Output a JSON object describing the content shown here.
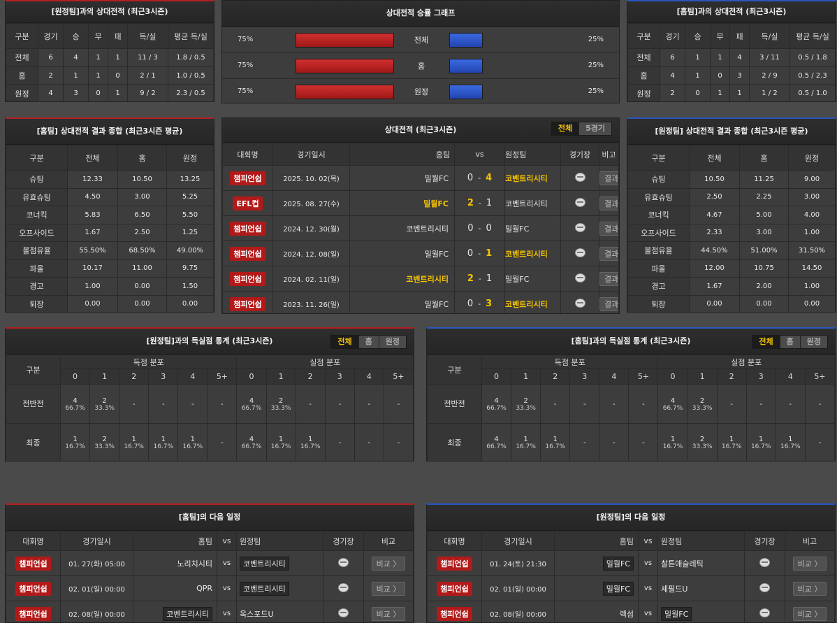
{
  "away_h2h": {
    "title": "[원정팀]과의 상대전적 (최근3시즌)",
    "headers": [
      "구분",
      "경기",
      "승",
      "무",
      "패",
      "득/실",
      "평균 득/실"
    ],
    "rows": [
      [
        "전체",
        "6",
        "4",
        "1",
        "1",
        "11 / 3",
        "1.8 / 0.5"
      ],
      [
        "홈",
        "2",
        "1",
        "1",
        "0",
        "2 / 1",
        "1.0 / 0.5"
      ],
      [
        "원정",
        "4",
        "3",
        "0",
        "1",
        "9 / 2",
        "2.3 / 0.5"
      ]
    ]
  },
  "graph": {
    "title": "상대전적 승률 그래프",
    "rows": [
      {
        "label": "전체",
        "left": "75%",
        "right": "25%",
        "left_value": 0.75,
        "right_value": 0.25
      },
      {
        "label": "홈",
        "left": "75%",
        "right": "25%",
        "left_value": 0.75,
        "right_value": 0.25
      },
      {
        "label": "원정",
        "left": "75%",
        "right": "25%",
        "left_value": 0.75,
        "right_value": 0.25
      }
    ]
  },
  "home_h2h": {
    "title": "[홈팀]과의 상대전적 (최근3시즌)",
    "headers": [
      "구분",
      "경기",
      "승",
      "무",
      "패",
      "득/실",
      "평균 득/실"
    ],
    "rows": [
      [
        "전체",
        "6",
        "1",
        "1",
        "4",
        "3 / 11",
        "0.5 / 1.8"
      ],
      [
        "홈",
        "4",
        "1",
        "0",
        "3",
        "2 / 9",
        "0.5 / 2.3"
      ],
      [
        "원정",
        "2",
        "0",
        "1",
        "1",
        "1 / 2",
        "0.5 / 1.0"
      ]
    ]
  },
  "home_summary": {
    "title": "[홈팀] 상대전적 결과 종합 (최근3시즌 평균)",
    "headers": [
      "구분",
      "전체",
      "홈",
      "원정"
    ],
    "rows": [
      [
        "슈팅",
        "12.33",
        "10.50",
        "13.25"
      ],
      [
        "유효슈팅",
        "4.50",
        "3.00",
        "5.25"
      ],
      [
        "코너킥",
        "5.83",
        "6.50",
        "5.50"
      ],
      [
        "오프사이드",
        "1.67",
        "2.50",
        "1.25"
      ],
      [
        "볼점유율",
        "55.50%",
        "68.50%",
        "49.00%"
      ],
      [
        "파울",
        "10.17",
        "11.00",
        "9.75"
      ],
      [
        "경고",
        "1.00",
        "0.00",
        "1.50"
      ],
      [
        "퇴장",
        "0.00",
        "0.00",
        "0.00"
      ]
    ]
  },
  "recent": {
    "title": "상대전적 (최근3시즌)",
    "tabs": [
      "전체",
      "5경기"
    ],
    "headers": {
      "league": "대회명",
      "date": "경기일시",
      "home": "홈팀",
      "vs": "vs",
      "away": "원정팀",
      "venue": "경기장",
      "note": "비고"
    },
    "result_label": "결과 〉",
    "matches": [
      {
        "league": "챔피언쉽",
        "date": "2025. 10. 02(목)",
        "home": "밀월FC",
        "hs": "0",
        "as": "4",
        "away": "코벤트리시티",
        "winner": "away"
      },
      {
        "league": "EFL컵",
        "date": "2025. 08. 27(수)",
        "home": "밀월FC",
        "hs": "2",
        "as": "1",
        "away": "코벤트리시티",
        "winner": "home"
      },
      {
        "league": "챔피언쉽",
        "date": "2024. 12. 30(월)",
        "home": "코벤트리시티",
        "hs": "0",
        "as": "0",
        "away": "밀월FC",
        "winner": "none"
      },
      {
        "league": "챔피언쉽",
        "date": "2024. 12. 08(일)",
        "home": "밀월FC",
        "hs": "0",
        "as": "1",
        "away": "코벤트리시티",
        "winner": "away"
      },
      {
        "league": "챔피언쉽",
        "date": "2024. 02. 11(일)",
        "home": "코벤트리시티",
        "hs": "2",
        "as": "1",
        "away": "밀월FC",
        "winner": "home"
      },
      {
        "league": "챔피언쉽",
        "date": "2023. 11. 26(일)",
        "home": "밀월FC",
        "hs": "0",
        "as": "3",
        "away": "코벤트리시티",
        "winner": "away"
      }
    ]
  },
  "away_summary": {
    "title": "[원정팀] 상대전적 결과 종합 (최근3시즌 평균)",
    "headers": [
      "구분",
      "전체",
      "홈",
      "원정"
    ],
    "rows": [
      [
        "슈팅",
        "10.50",
        "11.25",
        "9.00"
      ],
      [
        "유효슈팅",
        "2.50",
        "2.25",
        "3.00"
      ],
      [
        "코너킥",
        "4.67",
        "5.00",
        "4.00"
      ],
      [
        "오프사이드",
        "2.33",
        "3.00",
        "1.00"
      ],
      [
        "볼점유율",
        "44.50%",
        "51.00%",
        "31.50%"
      ],
      [
        "파울",
        "12.00",
        "10.75",
        "14.50"
      ],
      [
        "경고",
        "1.67",
        "2.00",
        "1.00"
      ],
      [
        "퇴장",
        "0.00",
        "0.00",
        "0.00"
      ]
    ]
  },
  "goal_stats": [
    {
      "title": "[원정팀]과의 득실점 통계 (최근3시즌)",
      "tabs": [
        "전체",
        "홈",
        "원정"
      ],
      "col_label": "구분",
      "group_scored": "득점 분포",
      "group_conceded": "실점 분포",
      "cols": [
        "0",
        "1",
        "2",
        "3",
        "4",
        "5+"
      ],
      "rows": [
        {
          "label": "전반전",
          "scored": [
            [
              "4",
              "66.7%"
            ],
            [
              "2",
              "33.3%"
            ],
            [
              "-",
              ""
            ],
            [
              "-",
              ""
            ],
            [
              "-",
              ""
            ],
            [
              "-",
              ""
            ]
          ],
          "conceded": [
            [
              "4",
              "66.7%"
            ],
            [
              "2",
              "33.3%"
            ],
            [
              "-",
              ""
            ],
            [
              "-",
              ""
            ],
            [
              "-",
              ""
            ],
            [
              "-",
              ""
            ]
          ]
        },
        {
          "label": "최종",
          "scored": [
            [
              "1",
              "16.7%"
            ],
            [
              "2",
              "33.3%"
            ],
            [
              "1",
              "16.7%"
            ],
            [
              "1",
              "16.7%"
            ],
            [
              "1",
              "16.7%"
            ],
            [
              "-",
              ""
            ]
          ],
          "conceded": [
            [
              "4",
              "66.7%"
            ],
            [
              "1",
              "16.7%"
            ],
            [
              "1",
              "16.7%"
            ],
            [
              "-",
              ""
            ],
            [
              "-",
              ""
            ],
            [
              "-",
              ""
            ]
          ]
        }
      ]
    },
    {
      "title": "[홈팀]과의 득실점 통계 (최근3시즌)",
      "tabs": [
        "전체",
        "홈",
        "원정"
      ],
      "col_label": "구분",
      "group_scored": "득점 분포",
      "group_conceded": "실점 분포",
      "cols": [
        "0",
        "1",
        "2",
        "3",
        "4",
        "5+"
      ],
      "rows": [
        {
          "label": "전반전",
          "scored": [
            [
              "4",
              "66.7%"
            ],
            [
              "2",
              "33.3%"
            ],
            [
              "-",
              ""
            ],
            [
              "-",
              ""
            ],
            [
              "-",
              ""
            ],
            [
              "-",
              ""
            ]
          ],
          "conceded": [
            [
              "4",
              "66.7%"
            ],
            [
              "2",
              "33.3%"
            ],
            [
              "-",
              ""
            ],
            [
              "-",
              ""
            ],
            [
              "-",
              ""
            ],
            [
              "-",
              ""
            ]
          ]
        },
        {
          "label": "최종",
          "scored": [
            [
              "4",
              "66.7%"
            ],
            [
              "1",
              "16.7%"
            ],
            [
              "1",
              "16.7%"
            ],
            [
              "-",
              ""
            ],
            [
              "-",
              ""
            ],
            [
              "-",
              ""
            ]
          ],
          "conceded": [
            [
              "1",
              "16.7%"
            ],
            [
              "2",
              "33.3%"
            ],
            [
              "1",
              "16.7%"
            ],
            [
              "1",
              "16.7%"
            ],
            [
              "1",
              "16.7%"
            ],
            [
              "-",
              ""
            ]
          ]
        }
      ]
    }
  ],
  "schedules": [
    {
      "title": "[홈팀]의 다음 일정",
      "headers": {
        "league": "대회명",
        "date": "경기일시",
        "home": "홈팀",
        "vs": "vs",
        "away": "원정팀",
        "venue": "경기장",
        "note": "비교"
      },
      "compare_label": "비교 〉",
      "matches": [
        {
          "league": "챔피언쉽",
          "date": "01. 27(화) 05:00",
          "home": "노리치시티",
          "away": "코벤트리시티",
          "hl": "away"
        },
        {
          "league": "챔피언쉽",
          "date": "02. 01(일) 00:00",
          "home": "QPR",
          "away": "코벤트리시티",
          "hl": "away"
        },
        {
          "league": "챔피언쉽",
          "date": "02. 08(일) 00:00",
          "home": "코벤트리시티",
          "away": "옥스포드U",
          "hl": "home"
        }
      ]
    },
    {
      "title": "[원정팀]의 다음 일정",
      "headers": {
        "league": "대회명",
        "date": "경기일시",
        "home": "홈팀",
        "vs": "vs",
        "away": "원정팀",
        "venue": "경기장",
        "note": "비고"
      },
      "compare_label": "비교 〉",
      "matches": [
        {
          "league": "챔피언쉽",
          "date": "01. 24(토) 21:30",
          "home": "밀월FC",
          "away": "찰튼애슬레틱",
          "hl": "home"
        },
        {
          "league": "챔피언쉽",
          "date": "02. 01(일) 00:00",
          "home": "밀월FC",
          "away": "셰필드U",
          "hl": "home"
        },
        {
          "league": "챔피언쉽",
          "date": "02. 08(일) 00:00",
          "home": "렉섬",
          "away": "밀월FC",
          "hl": "away"
        }
      ]
    }
  ],
  "colors": {
    "accent_red": "#b52020",
    "accent_blue": "#2a56c0",
    "highlight": "#f5c400"
  }
}
